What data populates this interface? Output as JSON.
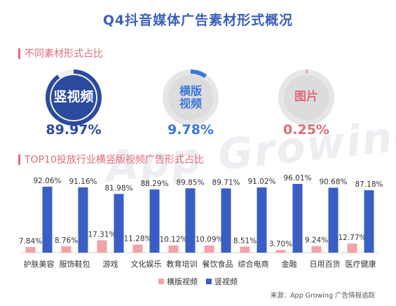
{
  "title": "Q4抖音媒体广告素材形式概况",
  "section1_label": "不同素材形式占比",
  "section2_label": "TOP10投放行业横竖版视频广告形式占比",
  "watermark": "App Growing",
  "rings": [
    {
      "label_line1": "竖视频",
      "label_line2": "",
      "value": 89.97,
      "pct_text": "89.97%",
      "ring_color": "#2b4a9e",
      "label_color": "#ffffff",
      "pct_color": "#2b4a9e",
      "style": "filled"
    },
    {
      "label_line1": "横版",
      "label_line2": "视频",
      "value": 9.78,
      "pct_text": "9.78%",
      "ring_color": "#3a78d8",
      "label_color": "#3a78d8",
      "pct_color": "#3a78d8",
      "style": "gray"
    },
    {
      "label_line1": "图片",
      "label_line2": "",
      "value": 0.25,
      "pct_text": "0.25%",
      "ring_color": "#e06b7a",
      "label_color": "#e06b7a",
      "pct_color": "#e06b7a",
      "style": "gray"
    }
  ],
  "chart_data": {
    "type": "bar",
    "categories": [
      "护肤美容",
      "服饰鞋包",
      "游戏",
      "文化娱乐",
      "教育培训",
      "餐饮食品",
      "综合电商",
      "金融",
      "日用百货",
      "医疗健康"
    ],
    "series": [
      {
        "name": "横版视频",
        "color": "#f2a3a8",
        "values": [
          7.84,
          8.76,
          17.31,
          11.28,
          10.12,
          10.09,
          8.51,
          3.7,
          9.24,
          12.77
        ],
        "labels": [
          "7.84%",
          "8.76%",
          "17.31%",
          "11.28%",
          "10.12%",
          "10.09%",
          "8.51%",
          "3.70%",
          "9.24%",
          "12.77%"
        ]
      },
      {
        "name": "竖视频",
        "color": "#3a5fc4",
        "values": [
          92.06,
          91.16,
          81.98,
          88.29,
          89.85,
          89.71,
          91.02,
          96.01,
          90.68,
          87.18
        ],
        "labels": [
          "92.06%",
          "91.16%",
          "81.98%",
          "88.29%",
          "89.85%",
          "89.71%",
          "91.02%",
          "96.01%",
          "90.68%",
          "87.18%"
        ]
      }
    ],
    "ylim": [
      0,
      100
    ],
    "legend_position": "bottom",
    "grid": false
  },
  "legend": [
    {
      "label": "横版视频",
      "color": "#f2a3a8"
    },
    {
      "label": "竖视频",
      "color": "#3a5fc4"
    }
  ],
  "source": "来源：App Growing 广告情报追踪"
}
